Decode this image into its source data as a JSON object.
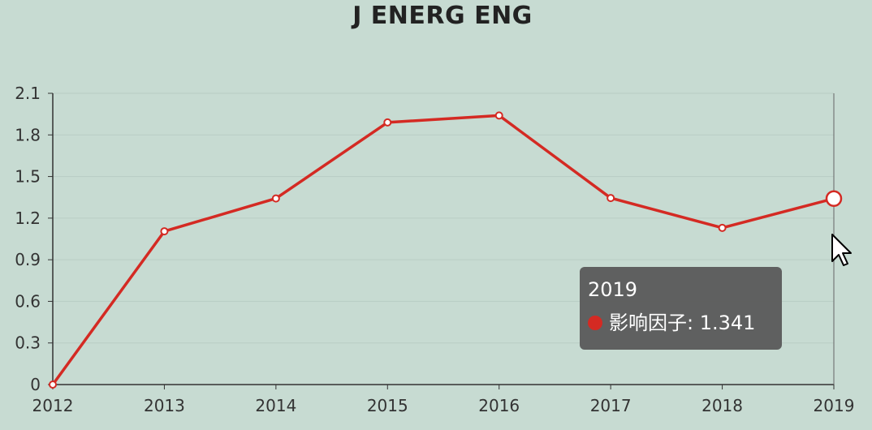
{
  "chart_data": {
    "type": "line",
    "title": "J ENERG ENG",
    "xlabel": "",
    "ylabel": "",
    "categories": [
      "2012",
      "2013",
      "2014",
      "2015",
      "2016",
      "2017",
      "2018",
      "2019"
    ],
    "series": [
      {
        "name": "影响因子",
        "values": [
          0,
          1.105,
          1.342,
          1.89,
          1.94,
          1.345,
          1.13,
          1.341
        ],
        "color": "#d42a23"
      }
    ],
    "ylim": [
      0,
      2.1
    ],
    "yticks": [
      "0",
      "0.3",
      "0.6",
      "0.9",
      "1.2",
      "1.5",
      "1.8",
      "2.1"
    ],
    "grid": true,
    "highlighted_category": "2019"
  },
  "tooltip": {
    "title": "2019",
    "series_label": "影响因子",
    "value_text": "1.341"
  }
}
